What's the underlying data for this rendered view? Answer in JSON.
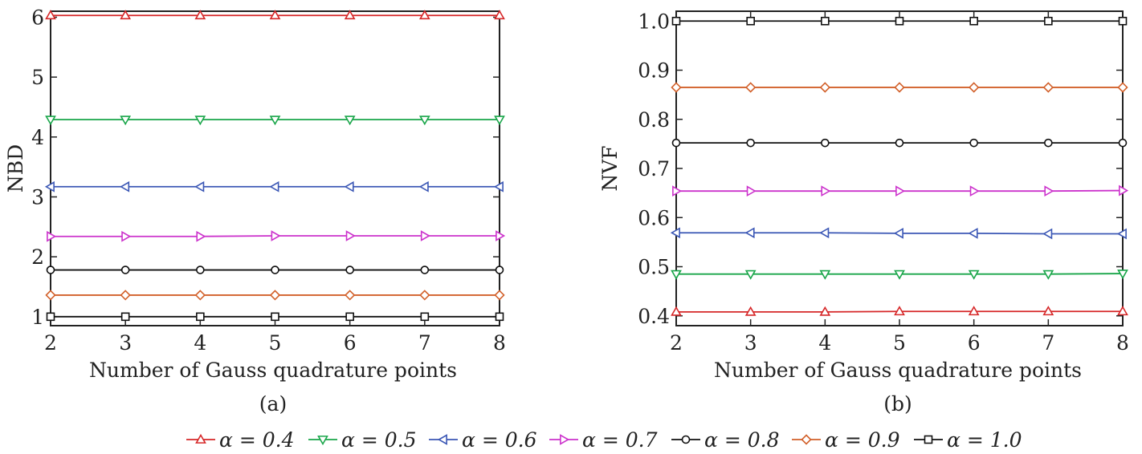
{
  "legend": [
    {
      "label": "α = 0.4",
      "color": "#d62728",
      "marker": "triangle-up"
    },
    {
      "label": "α = 0.5",
      "color": "#1aa64a",
      "marker": "triangle-down"
    },
    {
      "label": "α = 0.6",
      "color": "#3b57b5",
      "marker": "triangle-left"
    },
    {
      "label": "α = 0.7",
      "color": "#cc33cc",
      "marker": "triangle-right"
    },
    {
      "label": "α = 0.8",
      "color": "#111111",
      "marker": "circle"
    },
    {
      "label": "α = 0.9",
      "color": "#d2602a",
      "marker": "diamond"
    },
    {
      "label": "α = 1.0",
      "color": "#111111",
      "marker": "square"
    }
  ],
  "chart_data": [
    {
      "type": "line",
      "panel_label": "(a)",
      "xlabel": "Number of Gauss quadrature points",
      "ylabel": "NBD",
      "x": [
        2,
        3,
        4,
        5,
        6,
        7,
        8
      ],
      "xlim": [
        2,
        8
      ],
      "ylim": [
        0.85,
        6.1
      ],
      "xticks": [
        "2",
        "3",
        "4",
        "5",
        "6",
        "7",
        "8"
      ],
      "yticks": [
        1,
        2,
        3,
        4,
        5,
        6
      ],
      "grid": false,
      "series": [
        {
          "name": "α = 0.4",
          "values": [
            6.03,
            6.03,
            6.03,
            6.03,
            6.03,
            6.03,
            6.03
          ]
        },
        {
          "name": "α = 0.5",
          "values": [
            4.29,
            4.29,
            4.29,
            4.29,
            4.29,
            4.29,
            4.29
          ]
        },
        {
          "name": "α = 0.6",
          "values": [
            3.17,
            3.17,
            3.17,
            3.17,
            3.17,
            3.17,
            3.17
          ]
        },
        {
          "name": "α = 0.7",
          "values": [
            2.34,
            2.34,
            2.34,
            2.35,
            2.35,
            2.35,
            2.35
          ]
        },
        {
          "name": "α = 0.8",
          "values": [
            1.78,
            1.78,
            1.78,
            1.78,
            1.78,
            1.78,
            1.78
          ]
        },
        {
          "name": "α = 0.9",
          "values": [
            1.36,
            1.36,
            1.36,
            1.36,
            1.36,
            1.36,
            1.36
          ]
        },
        {
          "name": "α = 1.0",
          "values": [
            1.0,
            1.0,
            1.0,
            1.0,
            1.0,
            1.0,
            1.0
          ]
        }
      ]
    },
    {
      "type": "line",
      "panel_label": "(b)",
      "xlabel": "Number of Gauss quadrature points",
      "ylabel": "NVF",
      "x": [
        2,
        3,
        4,
        5,
        6,
        7,
        8
      ],
      "xlim": [
        2,
        8
      ],
      "ylim": [
        0.38,
        1.02
      ],
      "xticks": [
        "2",
        "3",
        "4",
        "5",
        "6",
        "7",
        "8"
      ],
      "yticks": [
        "0.4",
        "0.5",
        "0.6",
        "0.7",
        "0.8",
        "0.9",
        "1.0"
      ],
      "grid": false,
      "series": [
        {
          "name": "α = 0.4",
          "values": [
            0.408,
            0.408,
            0.408,
            0.409,
            0.409,
            0.409,
            0.409
          ]
        },
        {
          "name": "α = 0.5",
          "values": [
            0.485,
            0.485,
            0.485,
            0.485,
            0.485,
            0.485,
            0.486
          ]
        },
        {
          "name": "α = 0.6",
          "values": [
            0.569,
            0.569,
            0.569,
            0.568,
            0.568,
            0.567,
            0.567
          ]
        },
        {
          "name": "α = 0.7",
          "values": [
            0.654,
            0.654,
            0.654,
            0.654,
            0.654,
            0.654,
            0.655
          ]
        },
        {
          "name": "α = 0.8",
          "values": [
            0.752,
            0.752,
            0.752,
            0.752,
            0.752,
            0.752,
            0.752
          ]
        },
        {
          "name": "α = 0.9",
          "values": [
            0.865,
            0.865,
            0.865,
            0.865,
            0.865,
            0.865,
            0.865
          ]
        },
        {
          "name": "α = 1.0",
          "values": [
            1.0,
            1.0,
            1.0,
            1.0,
            1.0,
            1.0,
            1.0
          ]
        }
      ]
    }
  ]
}
